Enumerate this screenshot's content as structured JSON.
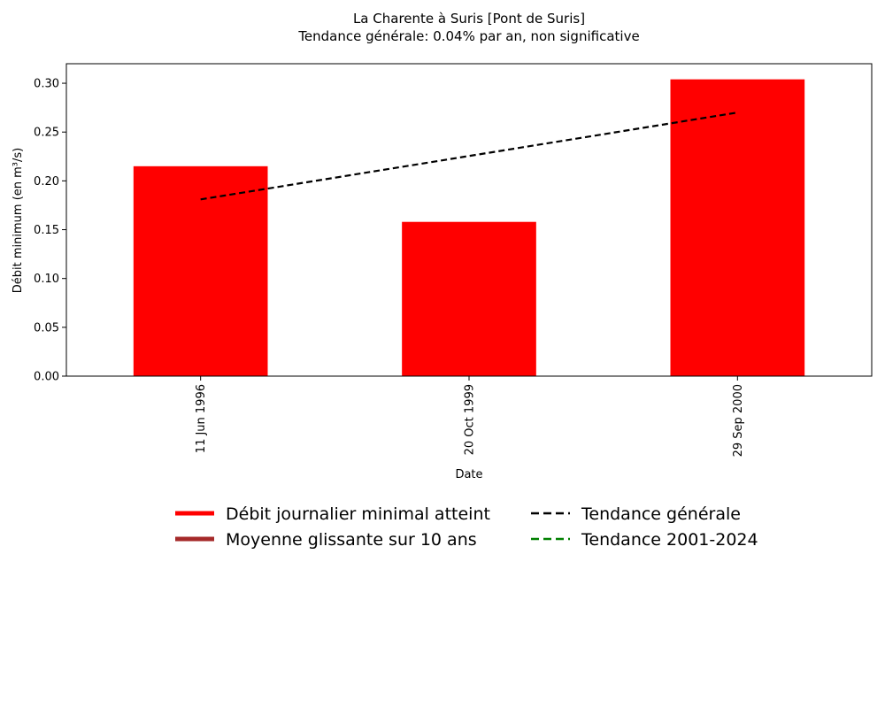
{
  "chart_data": {
    "type": "bar",
    "title": "La Charente à Suris [Pont de Suris]",
    "subtitle": "Tendance générale: 0.04% par an, non significative",
    "xlabel": "Date",
    "ylabel": "Débit minimum (en m³/s)",
    "categories": [
      "11 Jun 1996",
      "20 Oct 1999",
      "29 Sep 2000"
    ],
    "values": [
      0.215,
      0.158,
      0.304
    ],
    "ylim": [
      0,
      0.32
    ],
    "yticks": [
      "0.00",
      "0.05",
      "0.10",
      "0.15",
      "0.20",
      "0.25",
      "0.30"
    ],
    "trend": {
      "name": "Tendance générale",
      "start": 0.181,
      "end": 0.27
    },
    "grid": false,
    "legend_position": "bottom",
    "legend": [
      {
        "label": "Débit journalier minimal atteint",
        "style": "solid",
        "color": "#ff0000"
      },
      {
        "label": "Moyenne glissante sur 10 ans",
        "style": "solid",
        "color": "#a52a2a"
      },
      {
        "label": "Tendance générale",
        "style": "dashed",
        "color": "#000000"
      },
      {
        "label": "Tendance 2001-2024",
        "style": "dashed",
        "color": "#008000"
      }
    ],
    "colors": {
      "bar": "#ff0000",
      "trend": "#000000"
    }
  }
}
